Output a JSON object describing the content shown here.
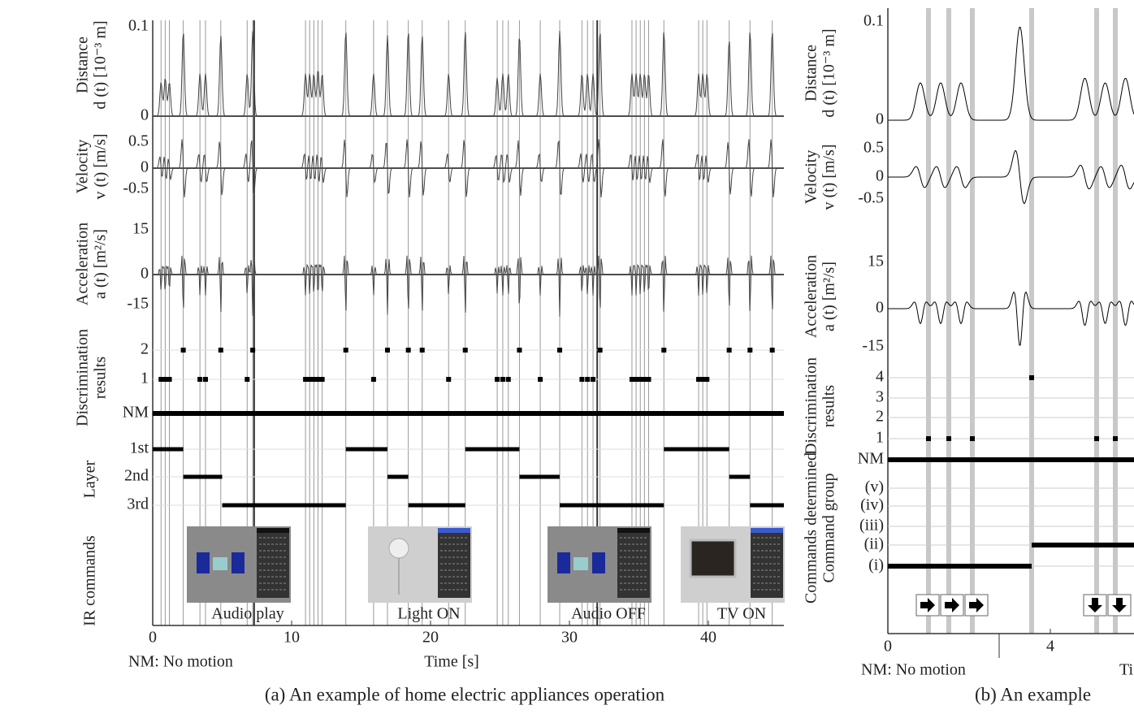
{
  "panel_a": {
    "rows": [
      {
        "title": "Distance",
        "unit": "d (t) [10⁻³ m]",
        "ticks": [
          "0.1",
          "0"
        ]
      },
      {
        "title": "Velocity",
        "unit": "v (t) [m/s]",
        "ticks": [
          "0.5",
          "0",
          "-0.5"
        ]
      },
      {
        "title": "Acceleration",
        "unit": "a (t) [m²/s]",
        "ticks": [
          "15",
          "0",
          "-15"
        ]
      },
      {
        "title": "Discrimination",
        "unit": "results",
        "ticks": [
          "2",
          "1",
          "NM"
        ]
      },
      {
        "title": "Layer",
        "ticks": [
          "1st",
          "2nd",
          "3rd"
        ]
      },
      {
        "title": "IR commands"
      }
    ],
    "commands": [
      "Audio play",
      "Light ON",
      "Audio OFF",
      "TV ON"
    ],
    "x_ticks": [
      "0",
      "10",
      "20",
      "30",
      "40"
    ],
    "x_label": "Time [s]",
    "note": "NM: No motion",
    "caption": "(a) An example of home electric appliances operation"
  },
  "panel_b": {
    "rows": [
      {
        "title": "Distance",
        "unit": "d (t) [10⁻³ m]",
        "ticks": [
          "0.1",
          "0"
        ]
      },
      {
        "title": "Velocity",
        "unit": "v (t) [m/s]",
        "ticks": [
          "0.5",
          "0",
          "-0.5"
        ]
      },
      {
        "title": "Acceleration",
        "unit": "a (t) [m²/s]",
        "ticks": [
          "15",
          "0",
          "-15"
        ]
      },
      {
        "title": "Discrimination",
        "unit": "results",
        "ticks": [
          "4",
          "3",
          "2",
          "1",
          "NM"
        ]
      },
      {
        "title": "Commands determined",
        "unit": "Command group",
        "ticks": [
          "(v)",
          "(iv)",
          "(iii)",
          "(ii)",
          "(i)"
        ]
      }
    ],
    "x_ticks": [
      "0",
      "4"
    ],
    "x_label": "Ti",
    "note": "NM: No motion",
    "caption": "(b) An example"
  }
}
